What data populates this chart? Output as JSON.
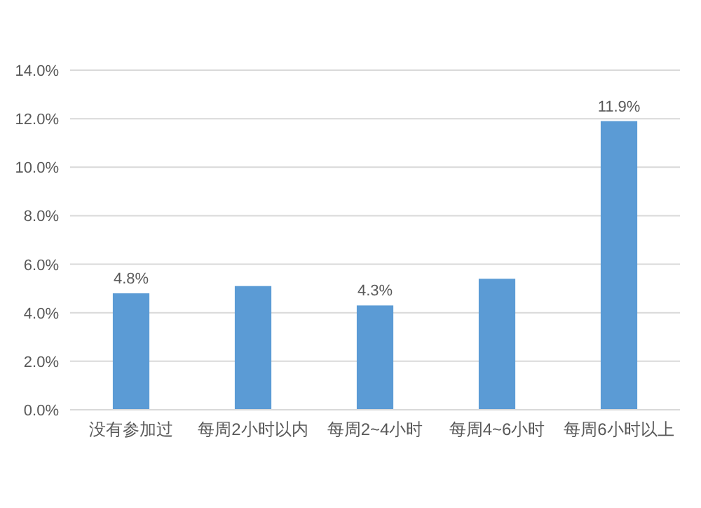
{
  "chart_data": {
    "type": "bar",
    "categories": [
      "没有参加过",
      "每周2小时以内",
      "每周2~4小时",
      "每周4~6小时",
      "每周6小时以上"
    ],
    "values": [
      4.8,
      5.1,
      4.3,
      5.4,
      11.9
    ],
    "value_labels": [
      "4.8%",
      null,
      "4.3%",
      null,
      "11.9%"
    ],
    "color": "#5b9bd5",
    "ylim": [
      0,
      14
    ],
    "yticks": [
      {
        "value": 0,
        "label": "0.0%"
      },
      {
        "value": 2,
        "label": "2.0%"
      },
      {
        "value": 4,
        "label": "4.0%"
      },
      {
        "value": 6,
        "label": "6.0%"
      },
      {
        "value": 8,
        "label": "8.0%"
      },
      {
        "value": 10,
        "label": "10.0%"
      },
      {
        "value": 12,
        "label": "12.0%"
      },
      {
        "value": 14,
        "label": "14.0%"
      }
    ],
    "grid": "y"
  }
}
